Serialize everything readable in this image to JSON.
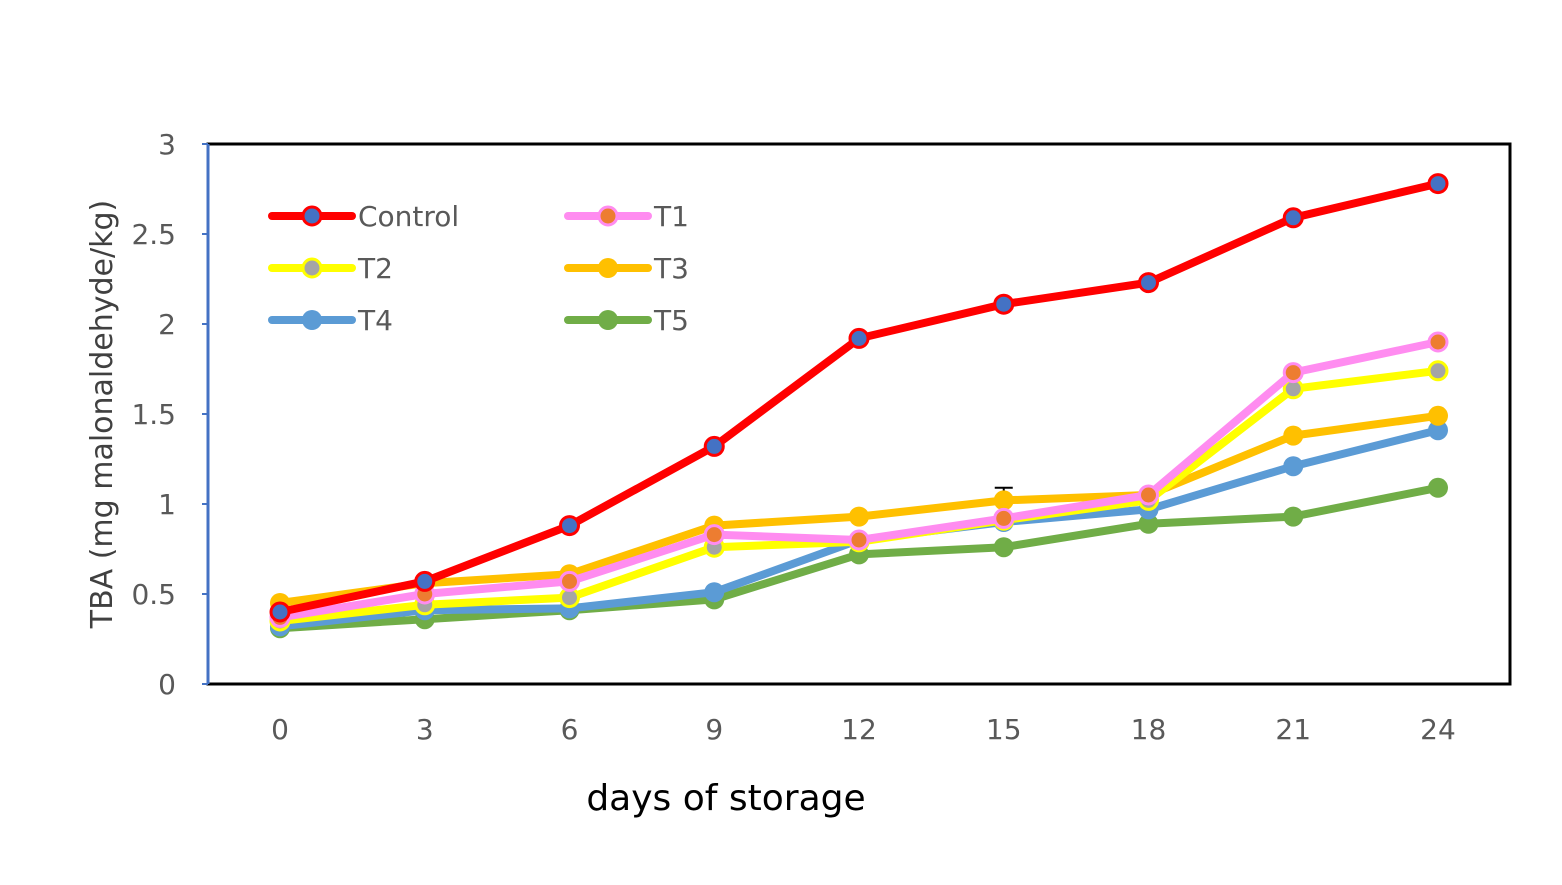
{
  "chart_data": {
    "type": "line",
    "xlabel": "days of storage",
    "ylabel": "TBA  (mg malonaldehyde/kg)",
    "x": [
      0,
      3,
      6,
      9,
      12,
      15,
      18,
      21,
      24
    ],
    "ylim": [
      0,
      3
    ],
    "yticks": [
      "0",
      "0.5",
      "1",
      "1.5",
      "2",
      "2.5",
      "3"
    ],
    "xticks": [
      "0",
      "3",
      "6",
      "9",
      "12",
      "15",
      "18",
      "21",
      "24"
    ],
    "grid": false,
    "legend_position": "top-left",
    "series": [
      {
        "name": "Control",
        "color": "#ff0000",
        "marker_color": "#4472c4",
        "values": [
          0.4,
          0.57,
          0.88,
          1.32,
          1.92,
          2.11,
          2.23,
          2.59,
          2.78
        ]
      },
      {
        "name": "T1",
        "color": "#ff8cf0",
        "marker_color": "#ed7d31",
        "values": [
          0.37,
          0.5,
          0.57,
          0.83,
          0.8,
          0.92,
          1.05,
          1.73,
          1.9
        ]
      },
      {
        "name": "T2",
        "color": "#ffff00",
        "marker_color": "#a5a5a5",
        "values": [
          0.35,
          0.44,
          0.48,
          0.76,
          0.79,
          0.91,
          1.02,
          1.64,
          1.74
        ]
      },
      {
        "name": "T3",
        "color": "#ffc000",
        "marker_color": "#ffc000",
        "values": [
          0.45,
          0.56,
          0.61,
          0.88,
          0.93,
          1.02,
          1.05,
          1.38,
          1.49
        ]
      },
      {
        "name": "T4",
        "color": "#5b9bd5",
        "marker_color": "#5b9bd5",
        "values": [
          0.32,
          0.41,
          0.42,
          0.51,
          0.8,
          0.9,
          0.97,
          1.21,
          1.41
        ]
      },
      {
        "name": "T5",
        "color": "#70ad47",
        "marker_color": "#70ad47",
        "values": [
          0.31,
          0.36,
          0.41,
          0.47,
          0.72,
          0.76,
          0.89,
          0.93,
          1.09
        ]
      }
    ]
  }
}
